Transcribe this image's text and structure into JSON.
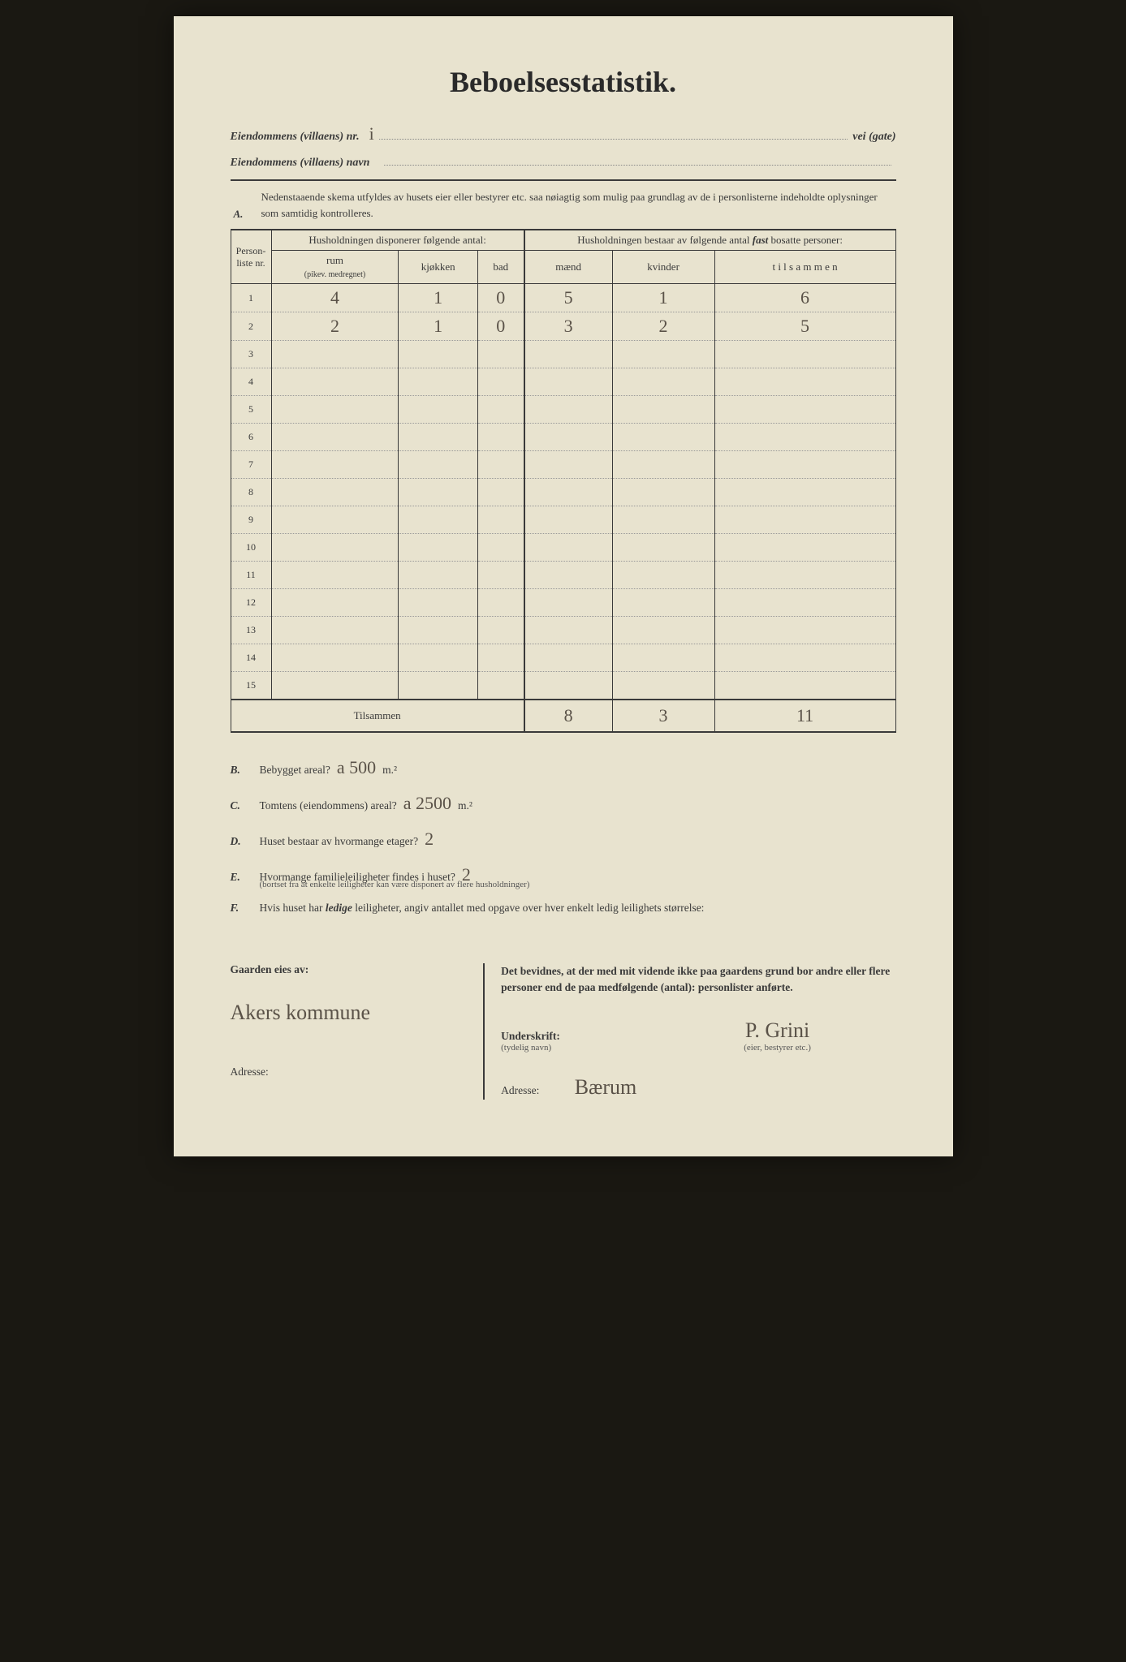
{
  "title": "Beboelsesstatistik.",
  "header": {
    "nr_label": "Eiendommens (villaens) nr.",
    "nr_value": "i",
    "vei_gate": "vei (gate)",
    "navn_label": "Eiendommens (villaens) navn"
  },
  "section_a": {
    "label": "A.",
    "text": "Nedenstaaende skema utfyldes av husets eier eller bestyrer etc. saa nøiagtig som mulig paa grundlag av de i personlisterne indeholdte oplysninger som samtidig kontrolleres."
  },
  "table": {
    "col_personliste": "Person-liste nr.",
    "group1": "Husholdningen disponerer følgende antal:",
    "col_rum": "rum",
    "col_rum_sub": "(pikev. medregnet)",
    "col_kjokken": "kjøkken",
    "col_bad": "bad",
    "group2_a": "Husholdningen bestaar av følgende antal ",
    "group2_b": "fast",
    "group2_c": " bosatte personer:",
    "col_maend": "mænd",
    "col_kvinder": "kvinder",
    "col_tilsammen": "t i l s a m m e n",
    "rows": [
      {
        "nr": "1",
        "rum": "4",
        "kjokken": "1",
        "bad": "0",
        "maend": "5",
        "kvinder": "1",
        "tilsammen": "6"
      },
      {
        "nr": "2",
        "rum": "2",
        "kjokken": "1",
        "bad": "0",
        "maend": "3",
        "kvinder": "2",
        "tilsammen": "5"
      },
      {
        "nr": "3"
      },
      {
        "nr": "4"
      },
      {
        "nr": "5"
      },
      {
        "nr": "6"
      },
      {
        "nr": "7"
      },
      {
        "nr": "8"
      },
      {
        "nr": "9"
      },
      {
        "nr": "10"
      },
      {
        "nr": "11"
      },
      {
        "nr": "12"
      },
      {
        "nr": "13"
      },
      {
        "nr": "14"
      },
      {
        "nr": "15"
      }
    ],
    "total_label": "Tilsammen",
    "totals": {
      "maend": "8",
      "kvinder": "3",
      "tilsammen": "11"
    }
  },
  "questions": {
    "B": {
      "label": "B.",
      "text": "Bebygget areal?",
      "value": "a 500",
      "unit": "m.²"
    },
    "C": {
      "label": "C.",
      "text": "Tomtens (eiendommens) areal?",
      "value": "a 2500",
      "unit": "m.²"
    },
    "D": {
      "label": "D.",
      "text": "Huset bestaar av hvormange etager?",
      "value": "2"
    },
    "E": {
      "label": "E.",
      "text": "Hvormange familieleiligheter findes i huset?",
      "value": "2",
      "sub": "(bortset fra at enkelte leiligheter kan være disponert av flere husholdninger)"
    },
    "F": {
      "label": "F.",
      "text": "Hvis huset har ledige leiligheter, angiv antallet med opgave over hver enkelt ledig leilighets størrelse:",
      "text_pre": "Hvis huset har ",
      "text_em": "ledige",
      "text_post": " leiligheter, angiv antallet med opgave over hver enkelt ledig leilighets størrelse:"
    }
  },
  "footer": {
    "left": {
      "owner_label": "Gaarden eies av:",
      "owner_value": "Akers kommune",
      "adresse_label": "Adresse:"
    },
    "right": {
      "bevid": "Det bevidnes, at der med mit vidende ikke paa gaardens grund bor andre eller flere personer end de paa medfølgende (antal):                    personlister anførte.",
      "underskrift_label": "Underskrift:",
      "underskrift_sub": "(tydelig navn)",
      "eier_sub": "(eier, bestyrer etc.)",
      "signature": "P. Grini",
      "adresse_label": "Adresse:",
      "adresse_value": "Bærum"
    }
  }
}
